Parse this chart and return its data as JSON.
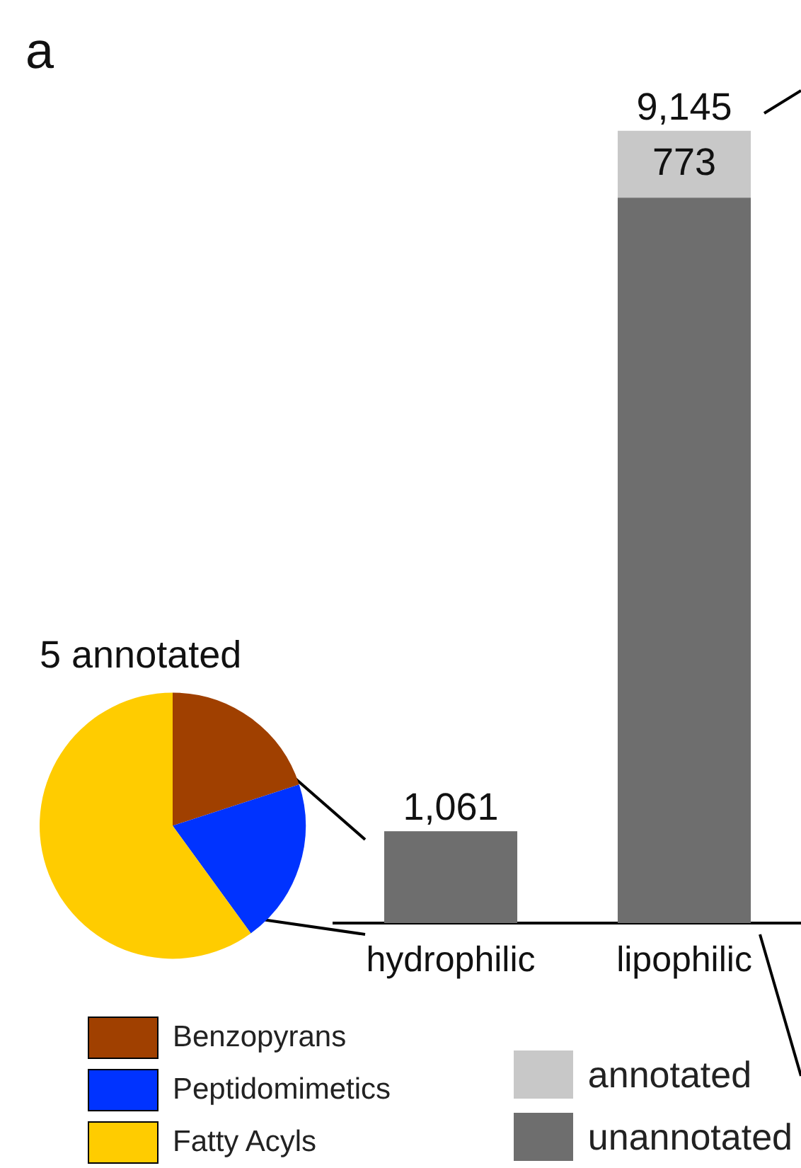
{
  "chart_data": [
    {
      "type": "bar",
      "stacked": true,
      "categories": [
        "hydrophilic",
        "lipophilic"
      ],
      "series": [
        {
          "name": "unannotated",
          "color": "#6e6e6e",
          "values": [
            1061,
            8372
          ]
        },
        {
          "name": "annotated",
          "color": "#c8c8c8",
          "values": [
            null,
            773
          ],
          "value_labels": [
            null,
            "773"
          ]
        }
      ],
      "totals": [
        "1,061",
        "9,145"
      ],
      "tick_labels": "x",
      "grid": false,
      "legend": "bottom right",
      "annotations": [
        "a"
      ]
    },
    {
      "type": "pie",
      "title": "5 annotated",
      "categories": [
        "Benzopyrans",
        "Peptidomimetics",
        "Fatty Acyls"
      ],
      "values": [
        20,
        20,
        60
      ],
      "colors": [
        "#a04000",
        "#0033ff",
        "#ffcc00"
      ],
      "legend": "bottom"
    }
  ]
}
